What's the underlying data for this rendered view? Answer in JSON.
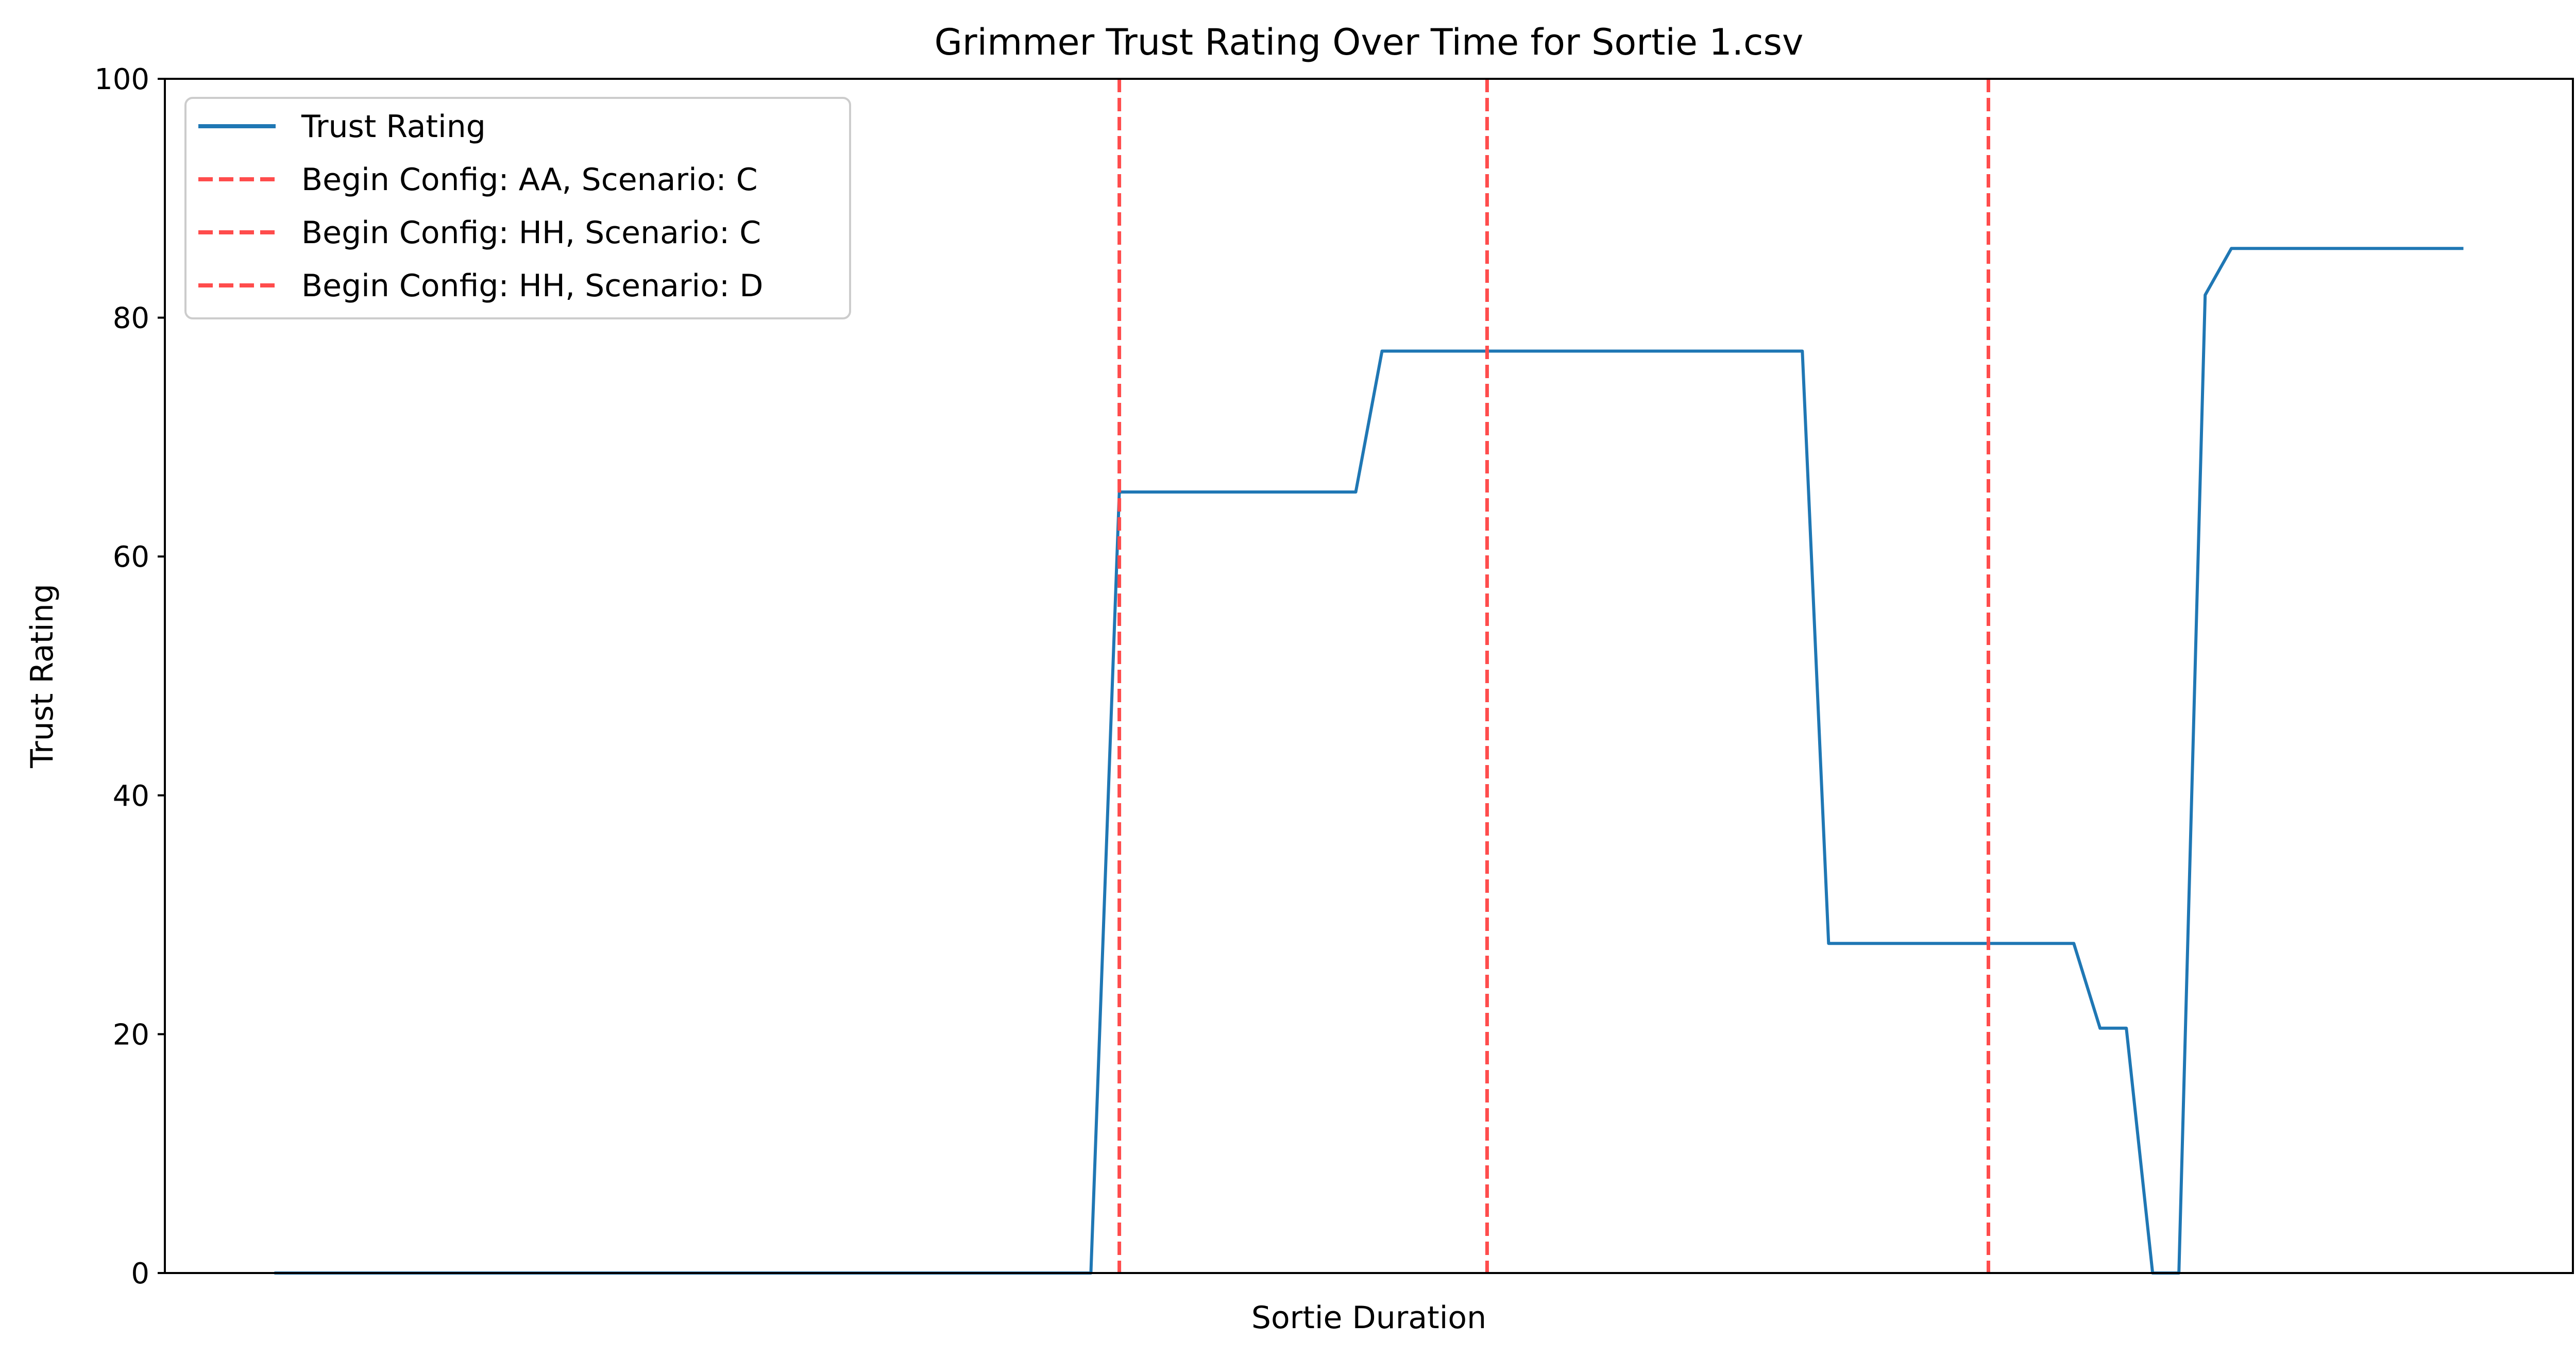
{
  "chart_data": {
    "type": "line",
    "title": "Grimmer Trust Rating Over Time for Sortie 1.csv",
    "xlabel": "Sortie Duration",
    "ylabel": "Trust Rating",
    "ylim": [
      0,
      100
    ],
    "yticks": [
      0,
      20,
      40,
      60,
      80,
      100
    ],
    "xticks_visible": false,
    "xlim": [
      -0.05,
      1.05
    ],
    "grid": false,
    "legend_position": "upper-left",
    "series": [
      {
        "name": "Trust Rating",
        "color": "#1f77b4",
        "style": "solid",
        "x": [
          0.0,
          0.373,
          0.386,
          0.494,
          0.506,
          0.698,
          0.71,
          0.794,
          0.822,
          0.834,
          0.846,
          0.858,
          0.87,
          0.882,
          0.894,
          0.906,
          1.0
        ],
        "y": [
          0,
          0,
          65.4,
          65.4,
          77.2,
          77.2,
          27.6,
          27.6,
          27.6,
          20.5,
          20.5,
          0,
          0,
          81.9,
          85.8,
          85.8,
          85.8
        ]
      }
    ],
    "vlines": [
      {
        "name": "Begin Config: AA, Scenario: C",
        "x": 0.386,
        "color": "#ff4c4c",
        "style": "dashed"
      },
      {
        "name": "Begin Config: HH, Scenario: C",
        "x": 0.554,
        "color": "#ff4c4c",
        "style": "dashed"
      },
      {
        "name": "Begin Config: HH, Scenario: D",
        "x": 0.783,
        "color": "#ff4c4c",
        "style": "dashed"
      }
    ]
  }
}
